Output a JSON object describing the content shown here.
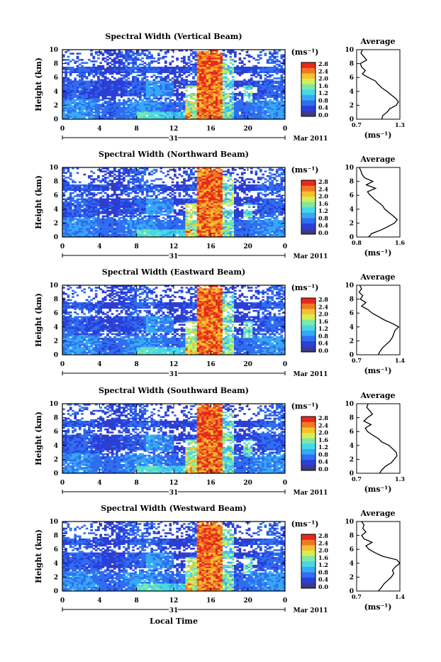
{
  "figure": {
    "x_axis_label": "Local Time",
    "date_label": "Mar 2011",
    "day_label": "31",
    "colorbar_unit": "(ms⁻¹)",
    "colorbar_ticks": [
      "0.0",
      "0.4",
      "0.8",
      "1.2",
      "1.6",
      "2.0",
      "2.4",
      "2.8"
    ],
    "avg_title": "Average",
    "avg_xlabel": "(ms⁻¹)",
    "time_ticks": [
      "0",
      "4",
      "8",
      "12",
      "16",
      "20",
      "0"
    ],
    "height_ticks": [
      "0",
      "2",
      "4",
      "6",
      "8",
      "10"
    ],
    "avg_height_ticks": [
      "0",
      "2",
      "4",
      "6",
      "8",
      "10"
    ],
    "y_axis_label": "Height (km)"
  },
  "colors": {
    "scale": [
      "#3a3a9a",
      "#2b3fd8",
      "#2f6ef0",
      "#37a8f5",
      "#46d8e6",
      "#7de8a6",
      "#d6ee55",
      "#f7c030",
      "#f07a22",
      "#e8281c"
    ],
    "missing": "#ffffff"
  },
  "chart_data": [
    {
      "type": "heatmap",
      "title": "Spectral Width (Vertical Beam)",
      "xlabel": "Local Time",
      "ylabel": "Height (km)",
      "xlim": [
        0,
        24
      ],
      "ylim": [
        0,
        10
      ],
      "colorbar": {
        "range": [
          0.0,
          2.8
        ],
        "unit": "(ms⁻¹)"
      },
      "average_profile": {
        "title": "Average",
        "xlabel": "(ms⁻¹)",
        "xlim": [
          0.7,
          1.3
        ],
        "x_tick_labels": [
          "0.7",
          "1.3"
        ],
        "height": [
          0,
          0.5,
          1,
          1.5,
          2,
          2.5,
          3,
          3.5,
          4,
          4.5,
          5,
          5.5,
          6,
          6.5,
          7,
          7.5,
          8,
          8.5,
          9,
          9.5,
          10
        ],
        "values": [
          1.05,
          1.06,
          1.12,
          1.16,
          1.25,
          1.28,
          1.24,
          1.18,
          1.12,
          1.05,
          1.0,
          0.96,
          0.86,
          0.78,
          0.82,
          0.77,
          0.75,
          0.84,
          0.8,
          0.76,
          0.78
        ]
      }
    },
    {
      "type": "heatmap",
      "title": "Spectral Width (Northward Beam)",
      "xlabel": "Local Time",
      "ylabel": "Height (km)",
      "xlim": [
        0,
        24
      ],
      "ylim": [
        0,
        10
      ],
      "colorbar": {
        "range": [
          0.0,
          2.8
        ],
        "unit": "(ms⁻¹)"
      },
      "average_profile": {
        "title": "Average",
        "xlabel": "(ms⁻¹)",
        "xlim": [
          0.8,
          1.6
        ],
        "x_tick_labels": [
          "0.8",
          "1.6"
        ],
        "height": [
          0,
          0.5,
          1,
          1.5,
          2,
          2.5,
          3,
          3.5,
          4,
          4.5,
          5,
          5.5,
          6,
          6.5,
          7,
          7.5,
          8,
          8.5,
          9,
          9.5,
          10
        ],
        "values": [
          1.02,
          1.08,
          1.25,
          1.38,
          1.5,
          1.55,
          1.48,
          1.4,
          1.32,
          1.28,
          1.2,
          1.12,
          1.05,
          1.0,
          1.15,
          0.98,
          1.1,
          0.95,
          0.9,
          0.88,
          0.85
        ]
      }
    },
    {
      "type": "heatmap",
      "title": "Spectral Width (Eastward Beam)",
      "xlabel": "Local Time",
      "ylabel": "Height (km)",
      "xlim": [
        0,
        24
      ],
      "ylim": [
        0,
        10
      ],
      "colorbar": {
        "range": [
          0.0,
          2.8
        ],
        "unit": "(ms⁻¹)"
      },
      "average_profile": {
        "title": "Average",
        "xlabel": "(ms⁻¹)",
        "xlim": [
          0.7,
          1.4
        ],
        "x_tick_labels": [
          "0.7",
          "1.4"
        ],
        "height": [
          0,
          0.5,
          1,
          1.5,
          2,
          2.5,
          3,
          3.5,
          4,
          4.5,
          5,
          5.5,
          6,
          6.5,
          7,
          7.5,
          8,
          8.5,
          9,
          9.5,
          10
        ],
        "values": [
          1.05,
          1.08,
          1.12,
          1.18,
          1.24,
          1.28,
          1.3,
          1.32,
          1.38,
          1.28,
          1.15,
          1.05,
          0.95,
          0.88,
          0.78,
          0.85,
          0.76,
          0.8,
          0.74,
          0.78,
          0.75
        ]
      }
    },
    {
      "type": "heatmap",
      "title": "Spectral Width (Southward Beam)",
      "xlabel": "Local Time",
      "ylabel": "Height (km)",
      "xlim": [
        0,
        24
      ],
      "ylim": [
        0,
        10
      ],
      "colorbar": {
        "range": [
          0.0,
          2.8
        ],
        "unit": "(ms⁻¹)"
      },
      "average_profile": {
        "title": "Average",
        "xlabel": "(ms⁻¹)",
        "xlim": [
          0.7,
          1.3
        ],
        "x_tick_labels": [
          "0.7",
          "1.3"
        ],
        "height": [
          0,
          0.5,
          1,
          1.5,
          2,
          2.5,
          3,
          3.5,
          4,
          4.5,
          5,
          5.5,
          6,
          6.5,
          7,
          7.5,
          8,
          8.5,
          9,
          9.5,
          10
        ],
        "values": [
          1.02,
          1.05,
          1.1,
          1.18,
          1.22,
          1.26,
          1.25,
          1.2,
          1.15,
          1.05,
          1.0,
          0.92,
          0.85,
          0.82,
          0.9,
          0.8,
          0.85,
          0.92,
          0.88,
          0.84,
          0.86
        ]
      }
    },
    {
      "type": "heatmap",
      "title": "Spectral Width (Westward Beam)",
      "xlabel": "Local Time",
      "ylabel": "Height (km)",
      "xlim": [
        0,
        24
      ],
      "ylim": [
        0,
        10
      ],
      "colorbar": {
        "range": [
          0.0,
          2.8
        ],
        "unit": "(ms⁻¹)"
      },
      "average_profile": {
        "title": "Average",
        "xlabel": "(ms⁻¹)",
        "xlim": [
          0.7,
          1.4
        ],
        "x_tick_labels": [
          "0.7",
          "1.4"
        ],
        "height": [
          0,
          0.5,
          1,
          1.5,
          2,
          2.5,
          3,
          3.5,
          4,
          4.5,
          5,
          5.5,
          6,
          6.5,
          7,
          7.5,
          8,
          8.5,
          9,
          9.5,
          10
        ],
        "values": [
          1.05,
          1.1,
          1.14,
          1.2,
          1.26,
          1.3,
          1.28,
          1.33,
          1.4,
          1.35,
          1.12,
          1.0,
          0.9,
          0.85,
          0.95,
          0.82,
          0.78,
          0.85,
          0.8,
          0.82,
          0.78
        ]
      }
    }
  ]
}
